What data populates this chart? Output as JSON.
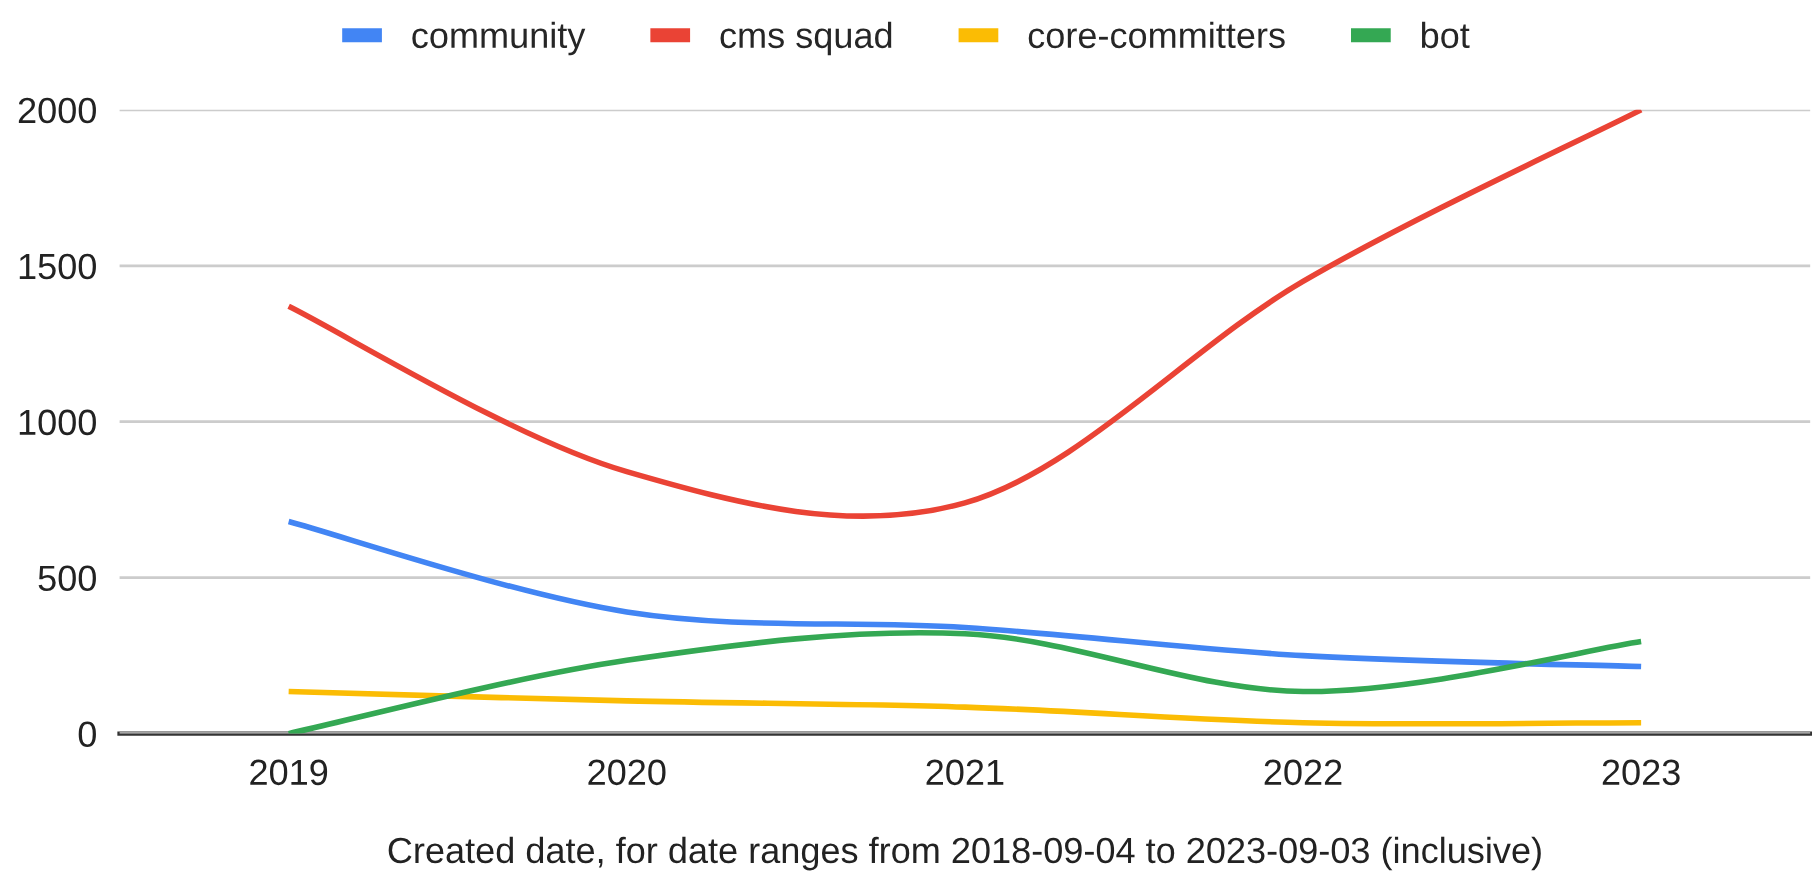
{
  "chart_data": {
    "type": "line",
    "categories": [
      "2019",
      "2020",
      "2021",
      "2022",
      "2023"
    ],
    "series": [
      {
        "name": "community",
        "color": "#4285f4",
        "values": [
          680,
          390,
          340,
          250,
          215
        ]
      },
      {
        "name": "cms squad",
        "color": "#ea4335",
        "values": [
          1370,
          840,
          740,
          1450,
          2000
        ]
      },
      {
        "name": "core-committers",
        "color": "#fbbc04",
        "values": [
          135,
          105,
          85,
          35,
          35
        ]
      },
      {
        "name": "bot",
        "color": "#34a853",
        "values": [
          0,
          235,
          320,
          135,
          295
        ]
      }
    ],
    "xlabel": "Created date, for date ranges from 2018-09-04 to 2023-09-03 (inclusive)",
    "ylim": [
      0,
      2000
    ],
    "yticks": [
      0,
      500,
      1000,
      1500,
      2000
    ],
    "grid": "y",
    "legend": "top"
  }
}
